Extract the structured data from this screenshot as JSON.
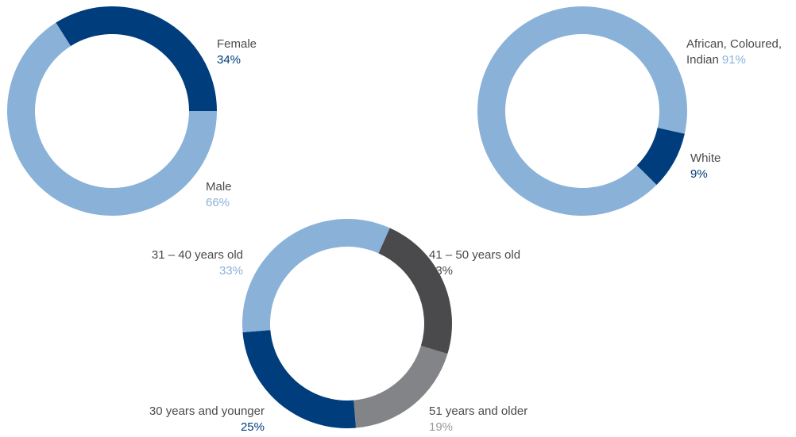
{
  "chart_data": [
    {
      "type": "pie",
      "donut": true,
      "categories": [
        "Female",
        "Male"
      ],
      "values": [
        34,
        66
      ],
      "value_labels": [
        "34%",
        "66%"
      ],
      "colors": [
        "#003d7c",
        "#8ab2d9"
      ],
      "label_colors": [
        "#003d7c",
        "#8ab2d9"
      ]
    },
    {
      "type": "pie",
      "donut": true,
      "categories": [
        "African, Coloured, Indian",
        "White"
      ],
      "label_lines": [
        [
          "African, Coloured,",
          "Indian"
        ],
        [
          "White"
        ]
      ],
      "values": [
        91,
        9
      ],
      "value_labels": [
        "91%",
        "9%"
      ],
      "colors": [
        "#8ab2d9",
        "#003d7c"
      ],
      "label_colors": [
        "#8ab2d9",
        "#003d7c"
      ]
    },
    {
      "type": "pie",
      "donut": true,
      "categories": [
        "41 – 50 years old",
        "51 years and older",
        "30 years and younger",
        "31 – 40 years old"
      ],
      "values": [
        23,
        19,
        25,
        33
      ],
      "value_labels": [
        "23%",
        "19%",
        "25%",
        "33%"
      ],
      "colors": [
        "#4a4a4c",
        "#838487",
        "#003d7c",
        "#8ab2d9"
      ],
      "label_colors": [
        "#4a4a4a",
        "#9a9a9a",
        "#003d7c",
        "#8ab2d9"
      ]
    }
  ]
}
